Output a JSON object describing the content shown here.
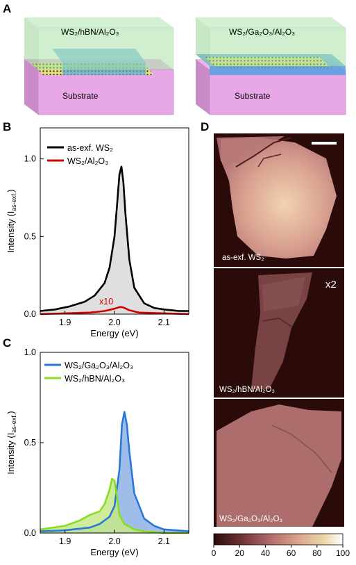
{
  "panel_labels": {
    "a": "A",
    "b": "B",
    "c": "C",
    "d": "D"
  },
  "panel_a": {
    "left_stack": "WS₂/hBN/Al₂O₃",
    "right_stack": "WS₂/Ga₂O₃/Al₂O₃",
    "substrate_left": "Substrate",
    "substrate_right": "Substrate"
  },
  "chart_data": [
    {
      "type": "line",
      "panel": "B",
      "xlabel": "Energy (eV)",
      "ylabel": "Intensity (I",
      "ylabel_sub": "as-exf.",
      "ylabel_close": ")",
      "xlim": [
        1.85,
        2.15
      ],
      "ylim": [
        0,
        1.2
      ],
      "xticks": [
        "1.9",
        "2.0",
        "2.1"
      ],
      "yticks": [
        "0.0",
        "0.5",
        "1.0"
      ],
      "annotation": "x10",
      "legend": [
        "as-exf. WS₂",
        "WS₂/Al₂O₃"
      ],
      "series": [
        {
          "name": "as-exf. WS₂",
          "color": "#000000",
          "fill": "#d9d9d9",
          "x": [
            1.85,
            1.88,
            1.91,
            1.94,
            1.96,
            1.98,
            1.99,
            2.0,
            2.005,
            2.01,
            2.014,
            2.018,
            2.022,
            2.03,
            2.04,
            2.06,
            2.08,
            2.1,
            2.13,
            2.15
          ],
          "y": [
            0.02,
            0.03,
            0.05,
            0.08,
            0.12,
            0.2,
            0.3,
            0.5,
            0.7,
            0.9,
            0.95,
            0.85,
            0.65,
            0.35,
            0.17,
            0.07,
            0.04,
            0.03,
            0.02,
            0.02
          ]
        },
        {
          "name": "WS₂/Al₂O₃",
          "color": "#d40000",
          "x": [
            1.85,
            1.9,
            1.95,
            1.98,
            2.0,
            2.01,
            2.015,
            2.02,
            2.03,
            2.05,
            2.1,
            2.15
          ],
          "y": [
            0.0,
            0.005,
            0.01,
            0.02,
            0.035,
            0.045,
            0.045,
            0.04,
            0.025,
            0.01,
            0.005,
            0.0
          ]
        }
      ]
    },
    {
      "type": "line",
      "panel": "C",
      "xlabel": "Energy (eV)",
      "ylabel": "Intensity (I",
      "ylabel_sub": "as-exf.",
      "ylabel_close": ")",
      "xlim": [
        1.85,
        2.15
      ],
      "ylim": [
        0,
        1.0
      ],
      "xticks": [
        "1.9",
        "2.0",
        "2.1"
      ],
      "yticks": [
        "0.0",
        "0.5",
        "1.0"
      ],
      "legend": [
        "WS₂/Ga₂O₃/Al₂O₃",
        "WS₂/hBN/Al₂O₃"
      ],
      "series": [
        {
          "name": "WS₂/Ga₂O₃/Al₂O₃",
          "color": "#2878d8",
          "fill": "#8fb1e6",
          "x": [
            1.85,
            1.9,
            1.95,
            1.97,
            1.99,
            2.0,
            2.01,
            2.015,
            2.02,
            2.025,
            2.03,
            2.04,
            2.06,
            2.08,
            2.1,
            2.15
          ],
          "y": [
            0.01,
            0.015,
            0.03,
            0.05,
            0.09,
            0.15,
            0.35,
            0.6,
            0.67,
            0.6,
            0.45,
            0.22,
            0.08,
            0.04,
            0.02,
            0.01
          ]
        },
        {
          "name": "WS₂/hBN/Al₂O₃",
          "color": "#88dd22",
          "fill": "#c6e98a",
          "x": [
            1.85,
            1.9,
            1.93,
            1.95,
            1.97,
            1.98,
            1.99,
            1.995,
            2.0,
            2.005,
            2.01,
            2.02,
            2.04,
            2.06,
            2.1,
            2.15
          ],
          "y": [
            0.02,
            0.04,
            0.07,
            0.1,
            0.12,
            0.16,
            0.24,
            0.3,
            0.29,
            0.2,
            0.1,
            0.05,
            0.02,
            0.01,
            0.0,
            0.0
          ]
        }
      ]
    }
  ],
  "panel_d": {
    "images": [
      "as-exf. WS₂",
      "WS₂/hBN/Al₂O₃",
      "WS₂/Ga₂O₃/Al₂O₃"
    ],
    "multiplier": "x2",
    "colorbar_ticks": [
      "0",
      "20",
      "40",
      "60",
      "80",
      "100"
    ],
    "colorbar_colors": [
      "#2b0a0a",
      "#6b3030",
      "#b56e6e",
      "#d8a48a",
      "#ebd6a6",
      "#ffffff"
    ]
  }
}
